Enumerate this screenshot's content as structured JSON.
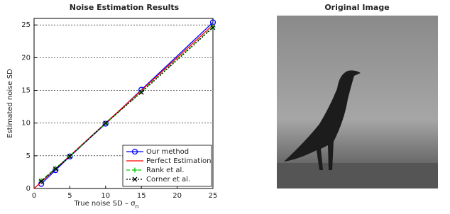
{
  "chart_data": {
    "type": "line",
    "title": "Noise Estimation Results",
    "xlabel": "True noise SD – σ",
    "xlabel_subscript": "n",
    "ylabel": "Estimated noise SD",
    "xlim": [
      0,
      25
    ],
    "ylim": [
      0,
      26
    ],
    "xticks": [
      0,
      5,
      10,
      15,
      20,
      25
    ],
    "yticks": [
      0,
      5,
      10,
      15,
      20,
      25
    ],
    "grid": true,
    "legend": "lower right",
    "series": [
      {
        "name": "Our method",
        "color": "#0000ff",
        "marker": "o",
        "dash": "solid",
        "x": [
          1,
          3,
          5,
          10,
          15,
          25
        ],
        "values": [
          0.7,
          2.8,
          4.9,
          9.9,
          15.1,
          25.4
        ]
      },
      {
        "name": "Perfect Estimation",
        "color": "#ff0000",
        "marker": null,
        "dash": "solid",
        "x": [
          0,
          25
        ],
        "values": [
          0,
          25
        ]
      },
      {
        "name": "Rank et al.",
        "color": "#00cc00",
        "marker": "+",
        "dash": "dashed",
        "x": [
          1,
          3,
          5,
          10,
          15,
          25
        ],
        "values": [
          1.2,
          3.1,
          5.0,
          9.9,
          14.8,
          24.7
        ]
      },
      {
        "name": "Corner et al.",
        "color": "#000000",
        "marker": "x",
        "dash": "dotted",
        "x": [
          1,
          3,
          5,
          10,
          15,
          25
        ],
        "values": [
          1.1,
          3.0,
          4.9,
          10.0,
          14.7,
          24.6
        ]
      }
    ]
  },
  "image_panel": {
    "title": "Original Image"
  }
}
